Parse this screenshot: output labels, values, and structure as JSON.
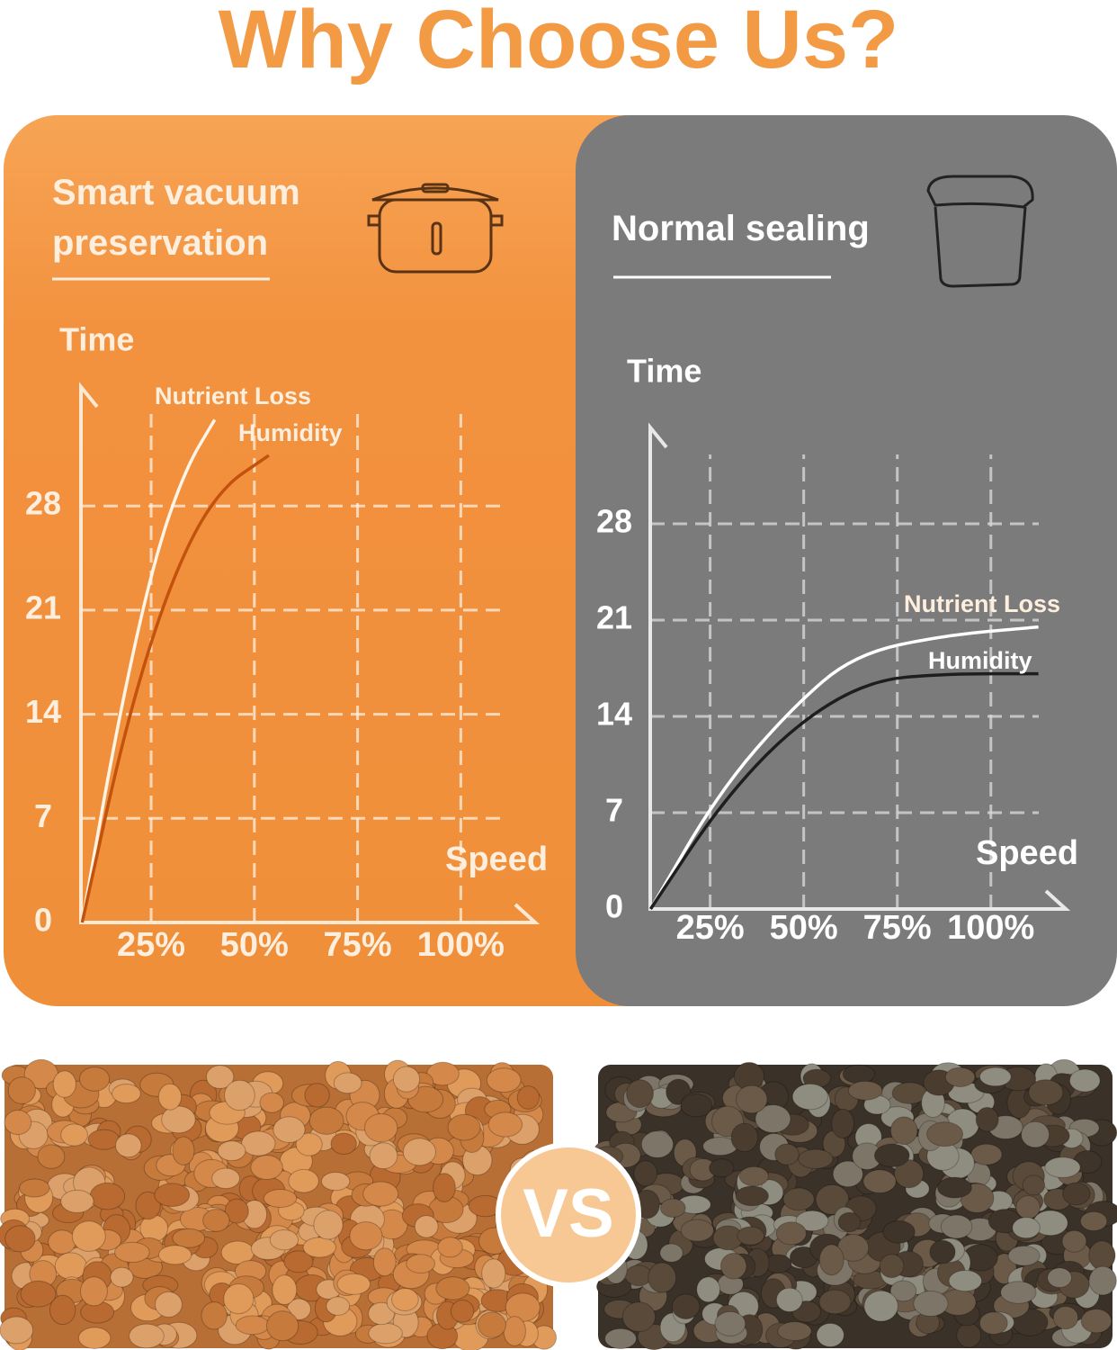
{
  "title": "Why Choose Us?",
  "vs": "VS",
  "chart_data": [
    {
      "type": "line",
      "title": "Smart vacuum preservation",
      "ylabel": "Time",
      "xlabel": "Speed",
      "xlim": [
        8,
        118
      ],
      "ylim": [
        0,
        36
      ],
      "xticks": [
        {
          "value": 25,
          "label": "25%"
        },
        {
          "value": 50,
          "label": "50%"
        },
        {
          "value": 75,
          "label": "75%"
        },
        {
          "value": 100,
          "label": "100%"
        }
      ],
      "yticks": [
        0,
        7,
        14,
        21,
        28
      ],
      "grid": true,
      "series": [
        {
          "name": "Nutrient Loss",
          "color": "#fff4e6",
          "x": [
            8.3,
            17,
            25.7,
            33.3,
            40.4
          ],
          "values": [
            0,
            13.6,
            24.4,
            30.5,
            33.8
          ]
        },
        {
          "name": "Humidity",
          "color": "#c2520e",
          "x": [
            8.3,
            19.1,
            30,
            40.9,
            53.5
          ],
          "values": [
            0,
            13.6,
            23.2,
            29,
            31.4
          ]
        }
      ]
    },
    {
      "type": "line",
      "title": "Normal sealing",
      "ylabel": "Time",
      "xlabel": "Speed",
      "xlim": [
        9,
        120
      ],
      "ylim": [
        0,
        35
      ],
      "xticks": [
        {
          "value": 25,
          "label": "25%"
        },
        {
          "value": 50,
          "label": "50%"
        },
        {
          "value": 75,
          "label": "75%"
        },
        {
          "value": 100,
          "label": "100%"
        }
      ],
      "yticks": [
        0,
        7,
        14,
        21,
        28
      ],
      "grid": true,
      "series": [
        {
          "name": "Nutrient Loss",
          "color": "#ffffff",
          "x": [
            9.1,
            27.6,
            46.8,
            63.5,
            87.5,
            112.7
          ],
          "values": [
            0,
            8.6,
            14.6,
            18.5,
            19.9,
            20.5
          ]
        },
        {
          "name": "Humidity",
          "color": "#1e1e1e",
          "x": [
            9.1,
            27.6,
            46.8,
            67.1,
            87.5,
            112.7
          ],
          "values": [
            0,
            7.6,
            13.2,
            16.6,
            17.1,
            17.1
          ]
        }
      ]
    }
  ]
}
